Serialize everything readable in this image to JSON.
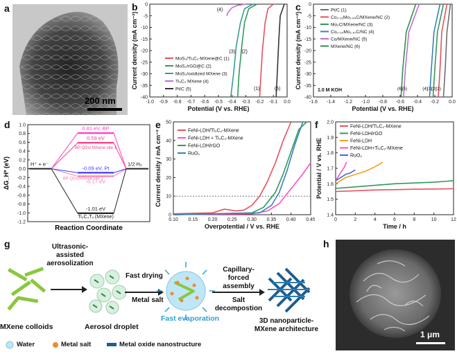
{
  "panel_labels": {
    "a": "a",
    "b": "b",
    "c": "c",
    "d": "d",
    "e": "e",
    "f": "f",
    "g": "g",
    "h": "h"
  },
  "scalebars": {
    "a": "200 nm",
    "h": "1 μm"
  },
  "chart_data": [
    {
      "id": "b",
      "type": "line",
      "xlabel": "Potential (V vs. RHE)",
      "ylabel": "Current density (mA cm⁻²)",
      "xlim": [
        -1.0,
        0.0
      ],
      "ylim": [
        -40,
        0
      ],
      "xticks": [
        "-1.0",
        "-0.9",
        "-0.8",
        "-0.7",
        "-0.6",
        "-0.5",
        "-0.4",
        "-0.3",
        "-0.2",
        "-0.1",
        "0.0"
      ],
      "yticks": [
        "0",
        "-5",
        "-10",
        "-15",
        "-20",
        "-25",
        "-30",
        "-35",
        "-40"
      ],
      "series": [
        {
          "name": "MoS₂/Ti₃C₂-MXene@C (1)",
          "color": "#e8505b",
          "x": [
            -0.1,
            -0.14,
            -0.16,
            -0.18,
            -0.19,
            -0.2
          ],
          "y": [
            0,
            -2,
            -8,
            -20,
            -30,
            -40
          ]
        },
        {
          "name": "MoS₂/rGO@C (2)",
          "color": "#2e9a5a",
          "x": [
            -0.22,
            -0.28,
            -0.31,
            -0.33,
            -0.35,
            -0.36
          ],
          "y": [
            0,
            -2,
            -8,
            -18,
            -30,
            -40
          ]
        },
        {
          "name": "MoS₂/oxidized MXene (3)",
          "color": "#3a9a9a",
          "x": [
            -0.25,
            -0.31,
            -0.34,
            -0.37,
            -0.39,
            -0.41
          ],
          "y": [
            0,
            -2,
            -8,
            -18,
            -30,
            -40
          ]
        },
        {
          "name": "Ti₃C₂ MXene (4)",
          "color": "#c06fc9",
          "x": [
            -0.3,
            -0.36,
            -0.4,
            -0.43,
            -0.44
          ],
          "y": [
            0,
            -0.5,
            -1.5,
            -3.5,
            -5
          ]
        },
        {
          "name": "Pt/C (5)",
          "color": "#333333",
          "x": [
            -0.02,
            -0.05,
            -0.06,
            -0.07,
            -0.08
          ],
          "y": [
            0,
            -5,
            -15,
            -28,
            -40
          ]
        }
      ],
      "annotations": [
        "(1)",
        "(2)",
        "(3)",
        "(4)",
        "(5)"
      ]
    },
    {
      "id": "c",
      "type": "line",
      "xlabel": "Potential (V vs. RHE)",
      "ylabel": "Current density (mA cm⁻²)",
      "xlim": [
        -1.6,
        0.0
      ],
      "ylim": [
        -40,
        0
      ],
      "xticks": [
        "-1.6",
        "-1.4",
        "-1.2",
        "-1.0",
        "-0.8",
        "-0.6",
        "-0.4",
        "-0.2",
        "0.0"
      ],
      "yticks": [
        "0",
        "-5",
        "-10",
        "-15",
        "-20",
        "-25",
        "-30",
        "-35",
        "-40"
      ],
      "electrolyte": "1.0 M KOH",
      "series": [
        {
          "name": "Pt/C (1)",
          "color": "#6e6e6e",
          "x": [
            -0.02,
            -0.06,
            -0.08,
            -0.1
          ],
          "y": [
            0,
            -12,
            -28,
            -40
          ]
        },
        {
          "name": "Co₀.₃₁Mo₁.₆₉C/MXene/NC (2)",
          "color": "#e8505b",
          "x": [
            -0.06,
            -0.12,
            -0.14,
            -0.16
          ],
          "y": [
            0,
            -12,
            -28,
            -40
          ]
        },
        {
          "name": "Mo₂C/MXene/NC (3)",
          "color": "#2e9a5a",
          "x": [
            -0.1,
            -0.17,
            -0.2,
            -0.22
          ],
          "y": [
            0,
            -12,
            -28,
            -40
          ]
        },
        {
          "name": "Co₀.₃₃Mo₁.₆₇C/NC (4)",
          "color": "#3a7fb8",
          "x": [
            -0.14,
            -0.21,
            -0.24,
            -0.26
          ],
          "y": [
            0,
            -12,
            -28,
            -40
          ]
        },
        {
          "name": "Co/MXene/NC (5)",
          "color": "#c06fc9",
          "x": [
            -0.38,
            -0.5,
            -0.54,
            -0.56
          ],
          "y": [
            0,
            -12,
            -28,
            -40
          ]
        },
        {
          "name": "MXene/NC (6)",
          "color": "#2f8f4f",
          "x": [
            -0.42,
            -0.53,
            -0.57,
            -0.59
          ],
          "y": [
            0,
            -12,
            -28,
            -40
          ]
        }
      ],
      "annotations": [
        "(6)",
        "(5)",
        "(4)",
        "(3)",
        "(2)",
        "(1)"
      ]
    },
    {
      "id": "d",
      "type": "line",
      "xlabel": "Reaction Coordinate",
      "ylabel": "ΔG_H* (eV)",
      "ylim": [
        -1.2,
        1.0
      ],
      "yticks": [
        "1.0",
        "0.8",
        "0.6",
        "0.4",
        "0.2",
        "0.0",
        "-0.2",
        "-0.4",
        "-0.6",
        "-0.8",
        "-1.0",
        "-1.2"
      ],
      "states": [
        "H⁺ + e⁻",
        "1/2 H₂"
      ],
      "series": [
        {
          "name": "BP",
          "color": "#ff3cc7",
          "value": 0.81,
          "label": "0.81 eV, BP"
        },
        {
          "name": "BP QDs/MXene site 1",
          "color": "#ff3c88",
          "value": 0.59,
          "label": "0.59 eV"
        },
        {
          "name": "BP QDs/MXene site 2",
          "color": "#ff7ab0",
          "value": -0.17,
          "label": "-0.17 eV"
        },
        {
          "name": "Pt",
          "color": "#3a3aff",
          "value": -0.09,
          "label": "-0.09 eV, Pt"
        },
        {
          "name": "Ti₃C₂Tₓ (MXene)",
          "color": "#222222",
          "value": -1.01,
          "label": "-1.01 eV"
        }
      ],
      "site_labels": [
        "BP QDs/ MXene site 1",
        "BP QDs/MXene site 2",
        "Ti₃C₂Tₓ (MXene)"
      ]
    },
    {
      "id": "e",
      "type": "line",
      "xlabel": "Overpotential / V vs. RHE",
      "ylabel": "Current density / mA cm⁻²",
      "xlim": [
        0.1,
        0.45
      ],
      "ylim": [
        0,
        50
      ],
      "xticks": [
        "0.10",
        "0.15",
        "0.20",
        "0.25",
        "0.30",
        "0.35",
        "0.40",
        "0.45"
      ],
      "yticks": [
        "0",
        "10",
        "20",
        "30",
        "40",
        "50"
      ],
      "reference_line": 10,
      "series": [
        {
          "name": "FeNi-LDH/Ti₃C₂-MXene",
          "color": "#e8505b",
          "x": [
            0.1,
            0.2,
            0.23,
            0.26,
            0.28,
            0.3,
            0.32,
            0.34,
            0.36,
            0.38,
            0.4
          ],
          "y": [
            0.5,
            1,
            3,
            2,
            2.5,
            5,
            10,
            18,
            28,
            40,
            50
          ]
        },
        {
          "name": "FeNi-LDH + Ti₃C₂-MXene",
          "color": "#ff4fc0",
          "x": [
            0.1,
            0.3,
            0.34,
            0.37,
            0.4,
            0.43,
            0.45
          ],
          "y": [
            0,
            0.5,
            2,
            6,
            14,
            22,
            28
          ]
        },
        {
          "name": "FeNi-LDH/rGO",
          "color": "#2e9a5a",
          "x": [
            0.1,
            0.3,
            0.33,
            0.36,
            0.38,
            0.4,
            0.42,
            0.44
          ],
          "y": [
            0,
            1,
            4,
            12,
            22,
            34,
            46,
            50
          ]
        },
        {
          "name": "RuO₂",
          "color": "#3a7fb8",
          "x": [
            0.1,
            0.32,
            0.35,
            0.37,
            0.39,
            0.41,
            0.43
          ],
          "y": [
            0,
            1,
            5,
            12,
            24,
            38,
            50
          ]
        }
      ]
    },
    {
      "id": "f",
      "type": "line",
      "xlabel": "Time / h",
      "ylabel": "Potential / V vs. RHE",
      "xlim": [
        0,
        12
      ],
      "ylim": [
        1.4,
        2.0
      ],
      "xticks": [
        "0",
        "2",
        "4",
        "6",
        "8",
        "10",
        "12"
      ],
      "yticks": [
        "1.4",
        "1.5",
        "1.6",
        "1.7",
        "1.8",
        "1.9",
        "2.0"
      ],
      "series": [
        {
          "name": "FeNi-LDH/Ti₃C₂-MXene",
          "color": "#e8505b",
          "x": [
            0,
            2,
            4,
            6,
            8,
            10,
            12
          ],
          "y": [
            1.55,
            1.555,
            1.56,
            1.562,
            1.565,
            1.566,
            1.568
          ]
        },
        {
          "name": "FeNi-LDH/rGO",
          "color": "#2e9a5a",
          "x": [
            0,
            2,
            4,
            6,
            8,
            10,
            12
          ],
          "y": [
            1.57,
            1.58,
            1.59,
            1.6,
            1.605,
            1.61,
            1.62
          ]
        },
        {
          "name": "FeNi-LDH",
          "color": "#f0a020",
          "x": [
            0,
            1,
            2,
            3,
            4,
            4.8
          ],
          "y": [
            1.6,
            1.64,
            1.66,
            1.68,
            1.71,
            1.74
          ]
        },
        {
          "name": "FeNi-LDH+Ti₃C₂-MXene",
          "color": "#ff4fc0",
          "x": [
            0,
            0.3,
            0.6,
            0.9,
            1.1
          ],
          "y": [
            1.62,
            1.65,
            1.68,
            1.71,
            1.74
          ]
        },
        {
          "name": "RuO₂",
          "color": "#3a6fd8",
          "x": [
            0,
            0.5,
            1.0,
            1.5,
            2.0
          ],
          "y": [
            1.62,
            1.64,
            1.66,
            1.67,
            1.69
          ]
        }
      ]
    }
  ],
  "schematic_g": {
    "steps": [
      "MXene colloids",
      "Aerosol droplet",
      "Fast evaporation",
      "3D nanoparticle-MXene architecture"
    ],
    "arrows": [
      "Ultrasonic-assisted aerosolization",
      "Fast drying",
      "Metal salt",
      "Capillary-forced assembly",
      "Salt decompostion"
    ],
    "legend": [
      "Water",
      "Metal salt",
      "Metal oxide nanostructure"
    ],
    "colors": {
      "water": "#bfe6f5",
      "metal_salt": "#f08a2a",
      "oxide": "#1f5e8e",
      "mxene": "#8cc63f"
    }
  }
}
